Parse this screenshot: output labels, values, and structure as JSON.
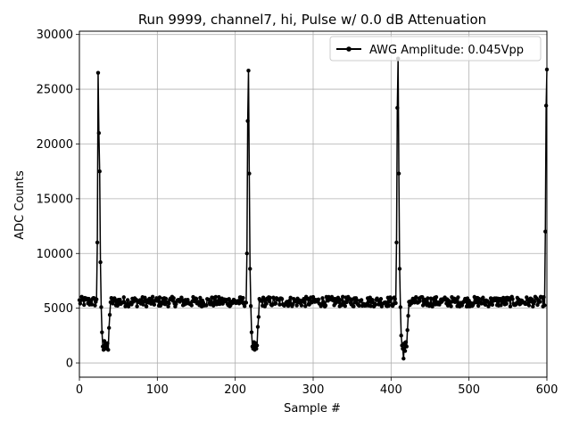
{
  "chart_data": {
    "type": "line",
    "title": "Run 9999, channel7, hi, Pulse w/ 0.0 dB Attenuation",
    "xlabel": "Sample #",
    "ylabel": "ADC Counts",
    "xlim": [
      0,
      600
    ],
    "ylim": [
      -1300,
      30300
    ],
    "xticks": [
      0,
      100,
      200,
      300,
      400,
      500,
      600
    ],
    "yticks": [
      0,
      5000,
      10000,
      15000,
      20000,
      25000,
      30000
    ],
    "grid": true,
    "legend_position": "top-right",
    "series_color": "#000000",
    "series": [
      {
        "name": "AWG Amplitude: 0.045Vpp",
        "baseline": 5600,
        "noise": 450,
        "pulses": [
          {
            "sample": 23,
            "values": [
              11000,
              26500,
              21000,
              17500,
              9200,
              5100,
              2800,
              1500,
              1200,
              2000,
              1300,
              1800,
              1300,
              1800,
              1200,
              3200,
              4400
            ]
          },
          {
            "sample": 215,
            "values": [
              10000,
              22100,
              26700,
              17300,
              8600,
              5200,
              2800,
              1500,
              1300,
              1900,
              1200,
              1800,
              1300,
              1600,
              3300,
              4200
            ]
          },
          {
            "sample": 407,
            "values": [
              11000,
              23300,
              27800,
              17300,
              8600,
              5100,
              2500,
              1600,
              1300,
              400,
              1800,
              1100,
              1900,
              1500,
              3000,
              4300
            ]
          },
          {
            "sample": 598,
            "values": [
              12000,
              23500,
              26800
            ]
          }
        ]
      }
    ]
  }
}
